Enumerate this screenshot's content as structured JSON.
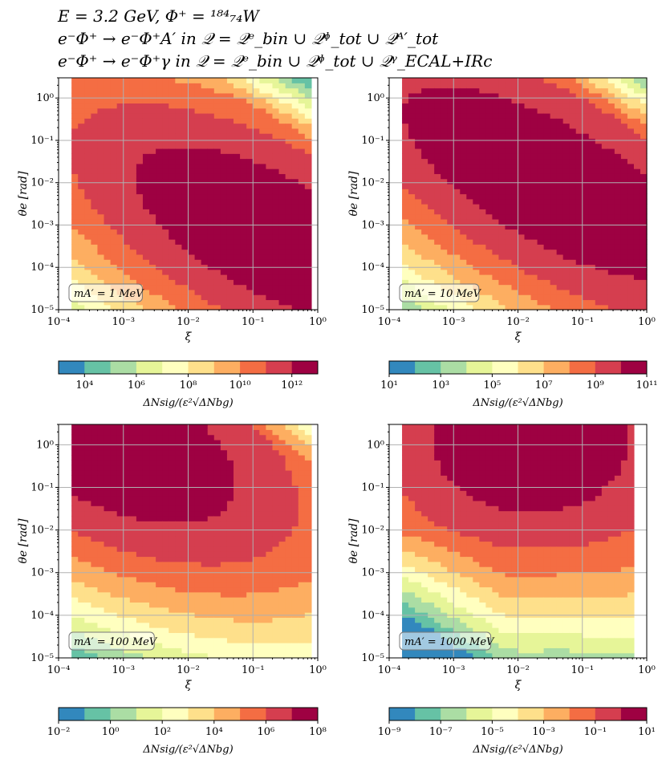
{
  "header": {
    "line1": "E = 3.2 GeV, Φ⁺ = ¹⁸⁴₇₄W",
    "line2": "e⁻Φ⁺ → e⁻Φ⁺A′ in 𝒬 = 𝒬ᵉ_bin ∪ 𝒬ᶲ_tot ∪ 𝒬ᴬ′_tot",
    "line3": "e⁻Φ⁺ → e⁻Φ⁺γ in 𝒬 = 𝒬ᵉ_bin ∪ 𝒬ᶲ_tot ∪ 𝒬ᵞ_ECAL+IRc"
  },
  "palette": [
    "#3288bd",
    "#66c2a5",
    "#abdda4",
    "#e6f598",
    "#ffffbf",
    "#fee08b",
    "#fdae61",
    "#f46d43",
    "#d53e4f",
    "#9e0142"
  ],
  "chart_data": [
    {
      "type": "heatmap",
      "xlabel": "ξ",
      "ylabel": "θe [rad]",
      "x_log": true,
      "y_log": true,
      "xlim": [
        0.0001,
        1
      ],
      "ylim": [
        1e-05,
        3
      ],
      "x_ticks": [
        "10⁻⁴",
        "10⁻³",
        "10⁻²",
        "10⁻¹",
        "10⁰"
      ],
      "y_ticks": [
        "10⁻⁵",
        "10⁻⁴",
        "10⁻³",
        "10⁻²",
        "10⁻¹",
        "10⁰"
      ],
      "grid": true,
      "annotation": "mA′ = 1 MeV",
      "colorbar": {
        "label": "ΔNsig/(ε²√ΔNbg)",
        "log_range": [
          3,
          13
        ],
        "ticks": [
          "10⁴",
          "10⁶",
          "10⁸",
          "10¹⁰",
          "10¹²"
        ],
        "tick_exponents": [
          4,
          6,
          8,
          10,
          12
        ]
      },
      "peak": {
        "xi": 0.15,
        "theta_e": 0.0007,
        "log_value": 12.8
      }
    },
    {
      "type": "heatmap",
      "xlabel": "ξ",
      "ylabel": "θe [rad]",
      "x_log": true,
      "y_log": true,
      "xlim": [
        0.0001,
        1
      ],
      "ylim": [
        1e-05,
        3
      ],
      "x_ticks": [
        "10⁻⁴",
        "10⁻³",
        "10⁻²",
        "10⁻¹",
        "10⁰"
      ],
      "y_ticks": [
        "10⁻⁵",
        "10⁻⁴",
        "10⁻³",
        "10⁻²",
        "10⁻¹",
        "10⁰"
      ],
      "grid": true,
      "annotation": "mA′ = 10 MeV",
      "colorbar": {
        "label": "ΔNsig/(ε²√ΔNbg)",
        "log_range": [
          1,
          11
        ],
        "ticks": [
          "10¹",
          "10³",
          "10⁵",
          "10⁷",
          "10⁹",
          "10¹¹"
        ],
        "tick_exponents": [
          1,
          3,
          5,
          7,
          9,
          11
        ]
      },
      "peak": {
        "xi": 0.03,
        "theta_e": 0.01,
        "log_value": 10.8
      }
    },
    {
      "type": "heatmap",
      "xlabel": "ξ",
      "ylabel": "θe [rad]",
      "x_log": true,
      "y_log": true,
      "xlim": [
        0.0001,
        1
      ],
      "ylim": [
        1e-05,
        3
      ],
      "x_ticks": [
        "10⁻⁴",
        "10⁻³",
        "10⁻²",
        "10⁻¹",
        "10⁰"
      ],
      "y_ticks": [
        "10⁻⁵",
        "10⁻⁴",
        "10⁻³",
        "10⁻²",
        "10⁻¹",
        "10⁰"
      ],
      "grid": true,
      "annotation": "mA′ = 100 MeV",
      "colorbar": {
        "label": "ΔNsig/(ε²√ΔNbg)",
        "log_range": [
          -2,
          8
        ],
        "ticks": [
          "10⁻²",
          "10⁰",
          "10²",
          "10⁴",
          "10⁶",
          "10⁸"
        ],
        "tick_exponents": [
          -2,
          0,
          2,
          4,
          6,
          8
        ]
      },
      "peak": {
        "xi": 0.0006,
        "theta_e": 1.2,
        "log_value": 7.8
      }
    },
    {
      "type": "heatmap",
      "xlabel": "ξ",
      "ylabel": "θe [rad]",
      "x_log": true,
      "y_log": true,
      "xlim": [
        0.0001,
        1
      ],
      "ylim": [
        1e-05,
        3
      ],
      "x_ticks": [
        "10⁻⁴",
        "10⁻³",
        "10⁻²",
        "10⁻¹",
        "10⁰"
      ],
      "y_ticks": [
        "10⁻⁵",
        "10⁻⁴",
        "10⁻³",
        "10⁻²",
        "10⁻¹",
        "10⁰"
      ],
      "grid": true,
      "annotation": "mA′ = 1000 MeV",
      "colorbar": {
        "label": "ΔNsig/(ε²√ΔNbg)",
        "log_range": [
          -9,
          1
        ],
        "ticks": [
          "10⁻⁹",
          "10⁻⁷",
          "10⁻⁵",
          "10⁻³",
          "10⁻¹",
          "10¹"
        ],
        "tick_exponents": [
          -9,
          -7,
          -5,
          -3,
          -1,
          1
        ]
      },
      "peak": {
        "xi": 0.008,
        "theta_e": 1.2,
        "log_value": 0.8
      }
    }
  ]
}
